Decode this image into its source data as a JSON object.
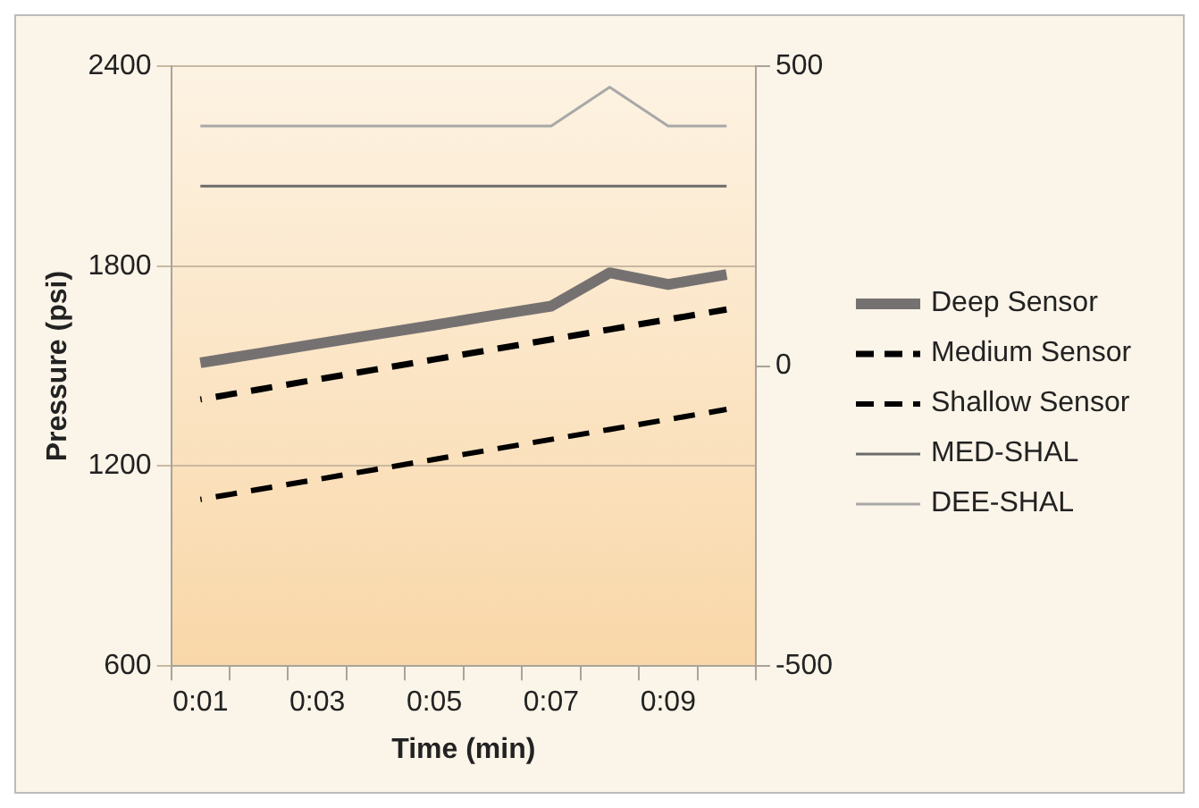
{
  "chart_data": {
    "type": "line",
    "xlabel": "Time (min)",
    "ylabel": "Pressure (psi)",
    "categories": [
      "0:01",
      null,
      "0:03",
      null,
      "0:05",
      null,
      "0:07",
      null,
      "0:09",
      null
    ],
    "series": [
      {
        "name": "Deep Sensor",
        "color": "#767171",
        "line_style": "solid",
        "values": [
          1510,
          1538,
          1567,
          1595,
          1623,
          1652,
          1680,
          1780,
          1745,
          1775
        ]
      },
      {
        "name": "Medium Sensor",
        "color": "#000000",
        "line_style": "dashed",
        "values": [
          1400,
          1430,
          1460,
          1490,
          1520,
          1550,
          1580,
          1610,
          1640,
          1670
        ]
      },
      {
        "name": "Shallow Sensor",
        "color": "#000000",
        "line_style": "dashed",
        "values": [
          1100,
          1130,
          1160,
          1190,
          1220,
          1250,
          1280,
          1310,
          1340,
          1370
        ]
      },
      {
        "name": "MED-SHAL",
        "color": "#6b6b6b",
        "line_style": "solid",
        "axis": "y2",
        "values": [
          300,
          300,
          300,
          300,
          300,
          300,
          300,
          300,
          300,
          300
        ]
      },
      {
        "name": "DEE-SHAL",
        "color": "#a8a8a8",
        "line_style": "solid",
        "axis": "y2",
        "values": [
          400,
          400,
          400,
          400,
          400,
          400,
          400,
          465,
          400,
          400
        ]
      }
    ],
    "ylim": [
      600,
      2400
    ],
    "yticks": [
      600,
      1200,
      1800,
      2400
    ],
    "y2lim": [
      -500,
      500
    ],
    "y2ticks": [
      -500,
      0,
      500
    ],
    "grid": "y",
    "legend": "right",
    "marker": "none"
  }
}
